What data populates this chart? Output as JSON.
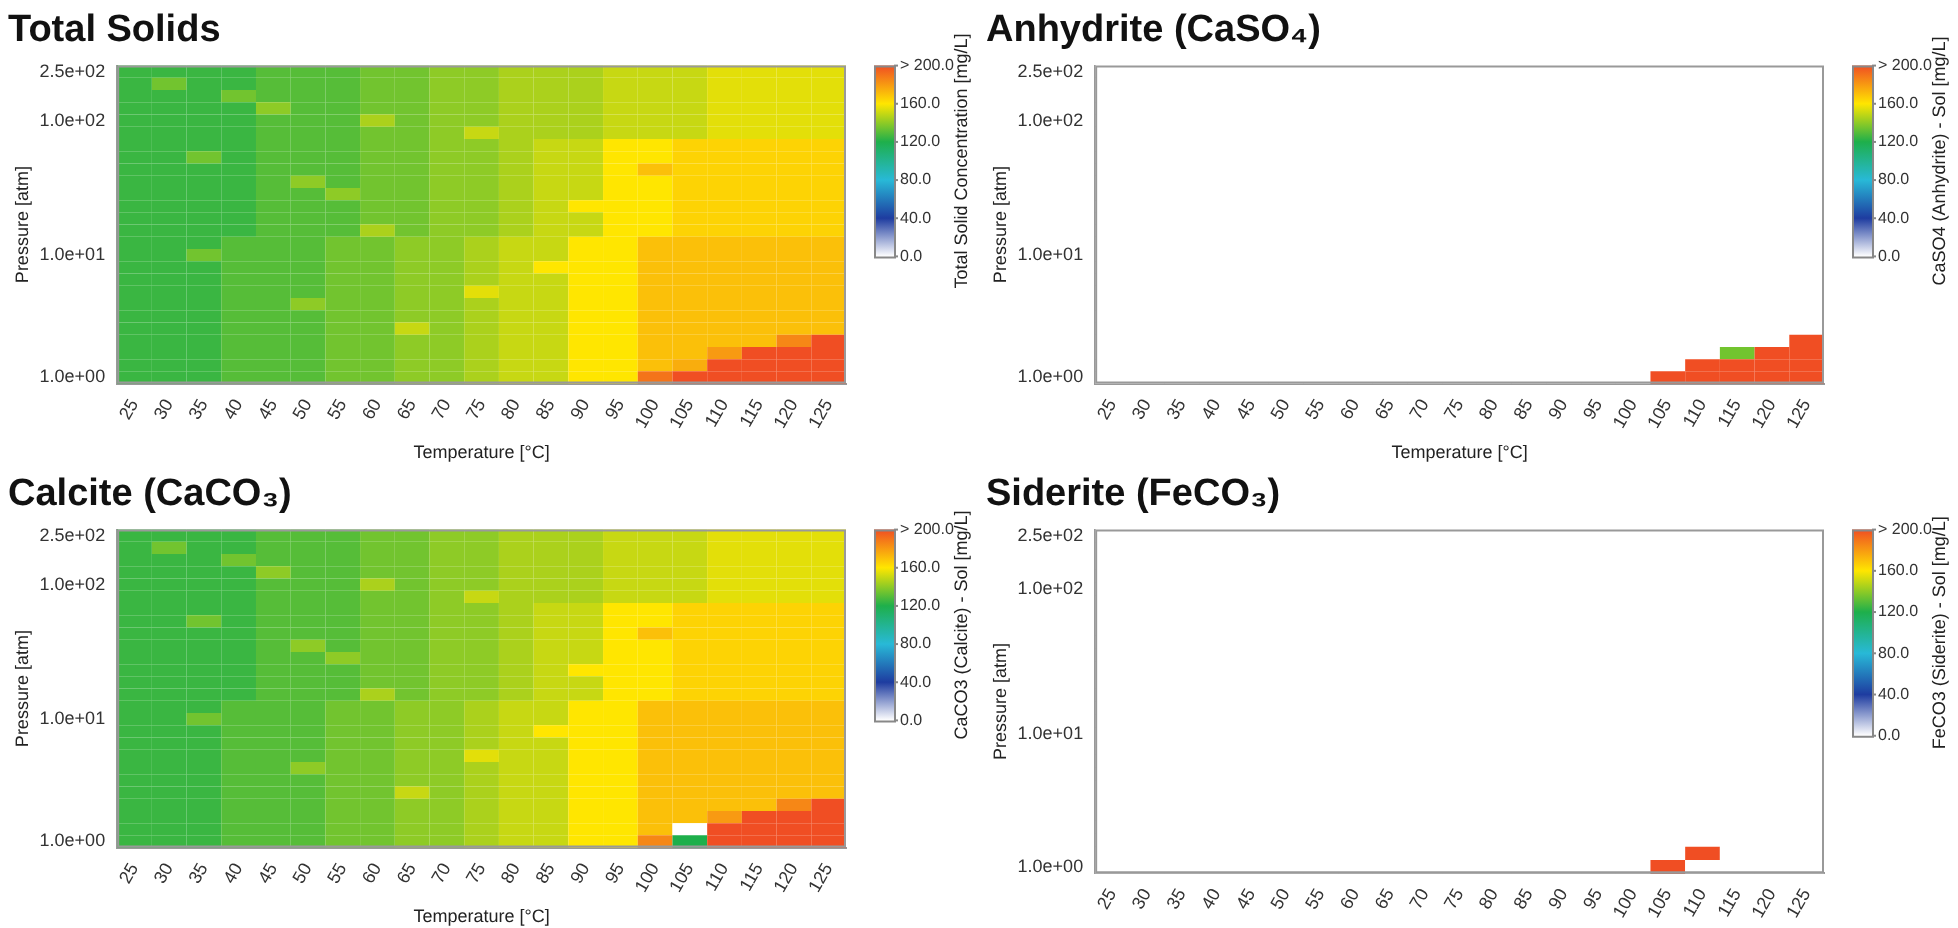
{
  "chart_data": [
    {
      "type": "heatmap",
      "title": "Total Solids",
      "xlabel": "Temperature [°C]",
      "ylabel": "Pressure [atm]",
      "clabel": "Total Solid Concentration [mg/L]",
      "categories": [
        "25",
        "30",
        "35",
        "40",
        "45",
        "50",
        "55",
        "60",
        "65",
        "70",
        "75",
        "80",
        "85",
        "90",
        "95",
        "100",
        "105",
        "110",
        "115",
        "120",
        "125"
      ],
      "y_categories": [
        "2.5e+02",
        null,
        null,
        null,
        "1.0e+02",
        null,
        null,
        null,
        null,
        null,
        null,
        null,
        null,
        null,
        null,
        "1.0e+01",
        null,
        null,
        null,
        null,
        null,
        null,
        null,
        null,
        null,
        "1.0e+00"
      ],
      "clim": [
        0,
        200
      ],
      "cticks": [
        {
          "value": 0,
          "label": "0.0"
        },
        {
          "value": 40,
          "label": "40.0"
        },
        {
          "value": 80,
          "label": "80.0"
        },
        {
          "value": 120,
          "label": "120.0"
        },
        {
          "value": 160,
          "label": "160.0"
        },
        {
          "value": 200,
          "label": "> 200.0"
        }
      ],
      "cells": [
        [
          125,
          125,
          125,
          125,
          130,
          130,
          130,
          135,
          135,
          140,
          140,
          145,
          145,
          145,
          150,
          150,
          150,
          155,
          155,
          155,
          155
        ],
        [
          125,
          135,
          125,
          125,
          130,
          130,
          130,
          135,
          135,
          140,
          140,
          145,
          145,
          145,
          150,
          150,
          150,
          155,
          155,
          155,
          155
        ],
        [
          125,
          125,
          125,
          135,
          130,
          130,
          130,
          135,
          135,
          140,
          140,
          145,
          145,
          145,
          150,
          150,
          150,
          155,
          155,
          155,
          155
        ],
        [
          125,
          125,
          125,
          125,
          140,
          130,
          130,
          135,
          135,
          140,
          140,
          145,
          145,
          145,
          150,
          150,
          150,
          155,
          155,
          155,
          155
        ],
        [
          125,
          125,
          125,
          125,
          130,
          130,
          130,
          145,
          135,
          140,
          140,
          145,
          145,
          145,
          150,
          150,
          150,
          155,
          155,
          155,
          155
        ],
        [
          125,
          125,
          125,
          125,
          130,
          130,
          130,
          135,
          135,
          140,
          150,
          145,
          145,
          145,
          150,
          150,
          150,
          155,
          155,
          155,
          155
        ],
        [
          125,
          125,
          125,
          125,
          130,
          130,
          130,
          135,
          135,
          140,
          140,
          145,
          150,
          150,
          160,
          160,
          165,
          165,
          165,
          165,
          165
        ],
        [
          125,
          125,
          135,
          125,
          130,
          130,
          130,
          135,
          135,
          140,
          140,
          145,
          150,
          150,
          160,
          160,
          165,
          165,
          165,
          165,
          165
        ],
        [
          125,
          125,
          125,
          125,
          130,
          130,
          130,
          135,
          135,
          140,
          140,
          145,
          150,
          150,
          160,
          170,
          165,
          165,
          165,
          165,
          165
        ],
        [
          125,
          125,
          125,
          125,
          130,
          140,
          130,
          135,
          135,
          140,
          140,
          145,
          150,
          150,
          160,
          160,
          165,
          165,
          165,
          165,
          165
        ],
        [
          125,
          125,
          125,
          125,
          130,
          130,
          140,
          135,
          135,
          140,
          140,
          145,
          150,
          150,
          160,
          160,
          165,
          165,
          165,
          165,
          165
        ],
        [
          125,
          125,
          125,
          125,
          130,
          130,
          130,
          135,
          135,
          140,
          140,
          145,
          150,
          160,
          160,
          160,
          165,
          165,
          165,
          165,
          165
        ],
        [
          125,
          125,
          125,
          125,
          130,
          130,
          130,
          135,
          135,
          140,
          140,
          145,
          150,
          150,
          160,
          160,
          165,
          165,
          165,
          165,
          165
        ],
        [
          125,
          125,
          125,
          125,
          130,
          130,
          130,
          145,
          135,
          140,
          140,
          145,
          150,
          150,
          160,
          160,
          165,
          165,
          165,
          165,
          165
        ],
        [
          125,
          125,
          125,
          130,
          130,
          130,
          135,
          135,
          140,
          140,
          145,
          150,
          150,
          160,
          160,
          170,
          170,
          170,
          170,
          170,
          170
        ],
        [
          125,
          125,
          135,
          130,
          130,
          130,
          135,
          135,
          140,
          140,
          145,
          150,
          150,
          160,
          160,
          170,
          170,
          170,
          170,
          170,
          170
        ],
        [
          125,
          125,
          125,
          130,
          130,
          130,
          135,
          135,
          140,
          140,
          145,
          150,
          160,
          160,
          160,
          170,
          170,
          170,
          170,
          170,
          170
        ],
        [
          125,
          125,
          125,
          130,
          130,
          130,
          135,
          135,
          140,
          140,
          145,
          150,
          150,
          160,
          160,
          170,
          170,
          170,
          170,
          170,
          170
        ],
        [
          125,
          125,
          125,
          130,
          130,
          130,
          135,
          135,
          140,
          140,
          155,
          150,
          150,
          160,
          160,
          170,
          170,
          170,
          170,
          170,
          170
        ],
        [
          125,
          125,
          125,
          130,
          130,
          140,
          135,
          135,
          140,
          140,
          145,
          150,
          150,
          160,
          160,
          170,
          170,
          170,
          170,
          170,
          170
        ],
        [
          125,
          125,
          125,
          130,
          130,
          130,
          135,
          135,
          140,
          140,
          145,
          150,
          150,
          160,
          160,
          170,
          170,
          170,
          170,
          170,
          170
        ],
        [
          125,
          125,
          125,
          130,
          130,
          130,
          135,
          135,
          150,
          140,
          145,
          150,
          150,
          160,
          160,
          170,
          170,
          170,
          170,
          170,
          170
        ],
        [
          125,
          125,
          125,
          130,
          130,
          130,
          135,
          135,
          140,
          140,
          145,
          150,
          150,
          160,
          160,
          170,
          170,
          170,
          170,
          185,
          200
        ],
        [
          125,
          125,
          125,
          130,
          130,
          130,
          135,
          135,
          140,
          140,
          145,
          150,
          150,
          160,
          160,
          170,
          170,
          180,
          200,
          200,
          200
        ],
        [
          125,
          125,
          125,
          130,
          130,
          130,
          135,
          135,
          140,
          140,
          145,
          150,
          150,
          160,
          160,
          170,
          175,
          200,
          200,
          200,
          200
        ],
        [
          125,
          125,
          125,
          130,
          130,
          130,
          135,
          135,
          140,
          140,
          145,
          150,
          150,
          160,
          160,
          190,
          200,
          200,
          200,
          200,
          200
        ]
      ]
    },
    {
      "type": "heatmap",
      "title": "Anhydrite (CaSO₄)",
      "xlabel": "Temperature [°C]",
      "ylabel": "Pressure [atm]",
      "clabel": "CaSO4 (Anhydrite) - Sol [mg/L]",
      "categories": [
        "25",
        "30",
        "35",
        "40",
        "45",
        "50",
        "55",
        "60",
        "65",
        "70",
        "75",
        "80",
        "85",
        "90",
        "95",
        "100",
        "105",
        "110",
        "115",
        "120",
        "125"
      ],
      "y_categories": [
        "2.5e+02",
        null,
        null,
        null,
        "1.0e+02",
        null,
        null,
        null,
        null,
        null,
        null,
        null,
        null,
        null,
        null,
        "1.0e+01",
        null,
        null,
        null,
        null,
        null,
        null,
        null,
        null,
        null,
        "1.0e+00"
      ],
      "clim": [
        0,
        200
      ],
      "cticks": [
        {
          "value": 0,
          "label": "0.0"
        },
        {
          "value": 40,
          "label": "40.0"
        },
        {
          "value": 80,
          "label": "80.0"
        },
        {
          "value": 120,
          "label": "120.0"
        },
        {
          "value": 160,
          "label": "160.0"
        },
        {
          "value": 200,
          "label": "> 200.0"
        }
      ],
      "cells": [
        [
          0,
          0,
          0,
          0,
          0,
          0,
          0,
          0,
          0,
          0,
          0,
          0,
          0,
          0,
          0,
          0,
          0,
          0,
          0,
          0,
          0
        ],
        [
          0,
          0,
          0,
          0,
          0,
          0,
          0,
          0,
          0,
          0,
          0,
          0,
          0,
          0,
          0,
          0,
          0,
          0,
          0,
          0,
          0
        ],
        [
          0,
          0,
          0,
          0,
          0,
          0,
          0,
          0,
          0,
          0,
          0,
          0,
          0,
          0,
          0,
          0,
          0,
          0,
          0,
          0,
          0
        ],
        [
          0,
          0,
          0,
          0,
          0,
          0,
          0,
          0,
          0,
          0,
          0,
          0,
          0,
          0,
          0,
          0,
          0,
          0,
          0,
          0,
          0
        ],
        [
          0,
          0,
          0,
          0,
          0,
          0,
          0,
          0,
          0,
          0,
          0,
          0,
          0,
          0,
          0,
          0,
          0,
          0,
          0,
          0,
          0
        ],
        [
          0,
          0,
          0,
          0,
          0,
          0,
          0,
          0,
          0,
          0,
          0,
          0,
          0,
          0,
          0,
          0,
          0,
          0,
          0,
          0,
          0
        ],
        [
          0,
          0,
          0,
          0,
          0,
          0,
          0,
          0,
          0,
          0,
          0,
          0,
          0,
          0,
          0,
          0,
          0,
          0,
          0,
          0,
          0
        ],
        [
          0,
          0,
          0,
          0,
          0,
          0,
          0,
          0,
          0,
          0,
          0,
          0,
          0,
          0,
          0,
          0,
          0,
          0,
          0,
          0,
          0
        ],
        [
          0,
          0,
          0,
          0,
          0,
          0,
          0,
          0,
          0,
          0,
          0,
          0,
          0,
          0,
          0,
          0,
          0,
          0,
          0,
          0,
          0
        ],
        [
          0,
          0,
          0,
          0,
          0,
          0,
          0,
          0,
          0,
          0,
          0,
          0,
          0,
          0,
          0,
          0,
          0,
          0,
          0,
          0,
          0
        ],
        [
          0,
          0,
          0,
          0,
          0,
          0,
          0,
          0,
          0,
          0,
          0,
          0,
          0,
          0,
          0,
          0,
          0,
          0,
          0,
          0,
          0
        ],
        [
          0,
          0,
          0,
          0,
          0,
          0,
          0,
          0,
          0,
          0,
          0,
          0,
          0,
          0,
          0,
          0,
          0,
          0,
          0,
          0,
          0
        ],
        [
          0,
          0,
          0,
          0,
          0,
          0,
          0,
          0,
          0,
          0,
          0,
          0,
          0,
          0,
          0,
          0,
          0,
          0,
          0,
          0,
          0
        ],
        [
          0,
          0,
          0,
          0,
          0,
          0,
          0,
          0,
          0,
          0,
          0,
          0,
          0,
          0,
          0,
          0,
          0,
          0,
          0,
          0,
          0
        ],
        [
          0,
          0,
          0,
          0,
          0,
          0,
          0,
          0,
          0,
          0,
          0,
          0,
          0,
          0,
          0,
          0,
          0,
          0,
          0,
          0,
          0
        ],
        [
          0,
          0,
          0,
          0,
          0,
          0,
          0,
          0,
          0,
          0,
          0,
          0,
          0,
          0,
          0,
          0,
          0,
          0,
          0,
          0,
          0
        ],
        [
          0,
          0,
          0,
          0,
          0,
          0,
          0,
          0,
          0,
          0,
          0,
          0,
          0,
          0,
          0,
          0,
          0,
          0,
          0,
          0,
          0
        ],
        [
          0,
          0,
          0,
          0,
          0,
          0,
          0,
          0,
          0,
          0,
          0,
          0,
          0,
          0,
          0,
          0,
          0,
          0,
          0,
          0,
          0
        ],
        [
          0,
          0,
          0,
          0,
          0,
          0,
          0,
          0,
          0,
          0,
          0,
          0,
          0,
          0,
          0,
          0,
          0,
          0,
          0,
          0,
          0
        ],
        [
          0,
          0,
          0,
          0,
          0,
          0,
          0,
          0,
          0,
          0,
          0,
          0,
          0,
          0,
          0,
          0,
          0,
          0,
          0,
          0,
          0
        ],
        [
          0,
          0,
          0,
          0,
          0,
          0,
          0,
          0,
          0,
          0,
          0,
          0,
          0,
          0,
          0,
          0,
          0,
          0,
          0,
          0,
          0
        ],
        [
          0,
          0,
          0,
          0,
          0,
          0,
          0,
          0,
          0,
          0,
          0,
          0,
          0,
          0,
          0,
          0,
          0,
          0,
          0,
          0,
          0
        ],
        [
          0,
          0,
          0,
          0,
          0,
          0,
          0,
          0,
          0,
          0,
          0,
          0,
          0,
          0,
          0,
          0,
          0,
          0,
          0,
          0,
          200
        ],
        [
          0,
          0,
          0,
          0,
          0,
          0,
          0,
          0,
          0,
          0,
          0,
          0,
          0,
          0,
          0,
          0,
          0,
          0,
          135,
          200,
          200
        ],
        [
          0,
          0,
          0,
          0,
          0,
          0,
          0,
          0,
          0,
          0,
          0,
          0,
          0,
          0,
          0,
          0,
          0,
          200,
          200,
          200,
          200
        ],
        [
          0,
          0,
          0,
          0,
          0,
          0,
          0,
          0,
          0,
          0,
          0,
          0,
          0,
          0,
          0,
          0,
          200,
          200,
          200,
          200,
          200
        ]
      ]
    },
    {
      "type": "heatmap",
      "title": "Calcite (CaCO₃)",
      "xlabel": "Temperature [°C]",
      "ylabel": "Pressure [atm]",
      "clabel": "CaCO3 (Calcite) - Sol [mg/L]",
      "categories": [
        "25",
        "30",
        "35",
        "40",
        "45",
        "50",
        "55",
        "60",
        "65",
        "70",
        "75",
        "80",
        "85",
        "90",
        "95",
        "100",
        "105",
        "110",
        "115",
        "120",
        "125"
      ],
      "y_categories": [
        "2.5e+02",
        null,
        null,
        null,
        "1.0e+02",
        null,
        null,
        null,
        null,
        null,
        null,
        null,
        null,
        null,
        null,
        "1.0e+01",
        null,
        null,
        null,
        null,
        null,
        null,
        null,
        null,
        null,
        "1.0e+00"
      ],
      "clim": [
        0,
        200
      ],
      "cticks": [
        {
          "value": 0,
          "label": "0.0"
        },
        {
          "value": 40,
          "label": "40.0"
        },
        {
          "value": 80,
          "label": "80.0"
        },
        {
          "value": 120,
          "label": "120.0"
        },
        {
          "value": 160,
          "label": "160.0"
        },
        {
          "value": 200,
          "label": "> 200.0"
        }
      ],
      "cells": [
        [
          125,
          125,
          125,
          125,
          130,
          130,
          130,
          135,
          135,
          140,
          140,
          145,
          145,
          145,
          150,
          150,
          150,
          155,
          155,
          155,
          155
        ],
        [
          125,
          135,
          125,
          125,
          130,
          130,
          130,
          135,
          135,
          140,
          140,
          145,
          145,
          145,
          150,
          150,
          150,
          155,
          155,
          155,
          155
        ],
        [
          125,
          125,
          125,
          135,
          130,
          130,
          130,
          135,
          135,
          140,
          140,
          145,
          145,
          145,
          150,
          150,
          150,
          155,
          155,
          155,
          155
        ],
        [
          125,
          125,
          125,
          125,
          140,
          130,
          130,
          135,
          135,
          140,
          140,
          145,
          145,
          145,
          150,
          150,
          150,
          155,
          155,
          155,
          155
        ],
        [
          125,
          125,
          125,
          125,
          130,
          130,
          130,
          145,
          135,
          140,
          140,
          145,
          145,
          145,
          150,
          150,
          150,
          155,
          155,
          155,
          155
        ],
        [
          125,
          125,
          125,
          125,
          130,
          130,
          130,
          135,
          135,
          140,
          150,
          145,
          145,
          145,
          150,
          150,
          150,
          155,
          155,
          155,
          155
        ],
        [
          125,
          125,
          125,
          125,
          130,
          130,
          130,
          135,
          135,
          140,
          140,
          145,
          150,
          150,
          160,
          160,
          165,
          165,
          165,
          165,
          165
        ],
        [
          125,
          125,
          135,
          125,
          130,
          130,
          130,
          135,
          135,
          140,
          140,
          145,
          150,
          150,
          160,
          160,
          165,
          165,
          165,
          165,
          165
        ],
        [
          125,
          125,
          125,
          125,
          130,
          130,
          130,
          135,
          135,
          140,
          140,
          145,
          150,
          150,
          160,
          170,
          165,
          165,
          165,
          165,
          165
        ],
        [
          125,
          125,
          125,
          125,
          130,
          140,
          130,
          135,
          135,
          140,
          140,
          145,
          150,
          150,
          160,
          160,
          165,
          165,
          165,
          165,
          165
        ],
        [
          125,
          125,
          125,
          125,
          130,
          130,
          140,
          135,
          135,
          140,
          140,
          145,
          150,
          150,
          160,
          160,
          165,
          165,
          165,
          165,
          165
        ],
        [
          125,
          125,
          125,
          125,
          130,
          130,
          130,
          135,
          135,
          140,
          140,
          145,
          150,
          160,
          160,
          160,
          165,
          165,
          165,
          165,
          165
        ],
        [
          125,
          125,
          125,
          125,
          130,
          130,
          130,
          135,
          135,
          140,
          140,
          145,
          150,
          150,
          160,
          160,
          165,
          165,
          165,
          165,
          165
        ],
        [
          125,
          125,
          125,
          125,
          130,
          130,
          130,
          145,
          135,
          140,
          140,
          145,
          150,
          150,
          160,
          160,
          165,
          165,
          165,
          165,
          165
        ],
        [
          125,
          125,
          125,
          130,
          130,
          130,
          135,
          135,
          140,
          140,
          145,
          150,
          150,
          160,
          160,
          170,
          170,
          170,
          170,
          170,
          170
        ],
        [
          125,
          125,
          135,
          130,
          130,
          130,
          135,
          135,
          140,
          140,
          145,
          150,
          150,
          160,
          160,
          170,
          170,
          170,
          170,
          170,
          170
        ],
        [
          125,
          125,
          125,
          130,
          130,
          130,
          135,
          135,
          140,
          140,
          145,
          150,
          160,
          160,
          160,
          170,
          170,
          170,
          170,
          170,
          170
        ],
        [
          125,
          125,
          125,
          130,
          130,
          130,
          135,
          135,
          140,
          140,
          145,
          150,
          150,
          160,
          160,
          170,
          170,
          170,
          170,
          170,
          170
        ],
        [
          125,
          125,
          125,
          130,
          130,
          130,
          135,
          135,
          140,
          140,
          155,
          150,
          150,
          160,
          160,
          170,
          170,
          170,
          170,
          170,
          170
        ],
        [
          125,
          125,
          125,
          130,
          130,
          140,
          135,
          135,
          140,
          140,
          145,
          150,
          150,
          160,
          160,
          170,
          170,
          170,
          170,
          170,
          170
        ],
        [
          125,
          125,
          125,
          130,
          130,
          130,
          135,
          135,
          140,
          140,
          145,
          150,
          150,
          160,
          160,
          170,
          170,
          170,
          170,
          170,
          170
        ],
        [
          125,
          125,
          125,
          130,
          130,
          130,
          135,
          135,
          150,
          140,
          145,
          150,
          150,
          160,
          160,
          170,
          170,
          170,
          170,
          170,
          170
        ],
        [
          125,
          125,
          125,
          130,
          130,
          130,
          135,
          135,
          140,
          140,
          145,
          150,
          150,
          160,
          160,
          170,
          170,
          170,
          170,
          185,
          200
        ],
        [
          125,
          125,
          125,
          130,
          130,
          130,
          135,
          135,
          140,
          140,
          145,
          150,
          150,
          160,
          160,
          170,
          170,
          180,
          200,
          200,
          200
        ],
        [
          125,
          125,
          125,
          130,
          130,
          130,
          135,
          135,
          140,
          140,
          145,
          150,
          150,
          160,
          160,
          170,
          0,
          200,
          200,
          200,
          200
        ],
        [
          125,
          125,
          125,
          130,
          130,
          130,
          135,
          135,
          140,
          140,
          145,
          150,
          150,
          160,
          160,
          185,
          120,
          200,
          200,
          200,
          200
        ]
      ]
    },
    {
      "type": "heatmap",
      "title": "Siderite (FeCO₃)",
      "ylabel": "Pressure [atm]",
      "clabel": "FeCO3 (Siderite) - Sol [mg/L]",
      "categories": [
        "25",
        "30",
        "35",
        "40",
        "45",
        "50",
        "55",
        "60",
        "65",
        "70",
        "75",
        "80",
        "85",
        "90",
        "95",
        "100",
        "105",
        "110",
        "115",
        "120",
        "125"
      ],
      "y_categories": [
        "2.5e+02",
        null,
        null,
        null,
        "1.0e+02",
        null,
        null,
        null,
        null,
        null,
        null,
        null,
        null,
        null,
        null,
        "1.0e+01",
        null,
        null,
        null,
        null,
        null,
        null,
        null,
        null,
        null,
        "1.0e+00"
      ],
      "clim": [
        0,
        200
      ],
      "cticks": [
        {
          "value": 0,
          "label": "0.0"
        },
        {
          "value": 40,
          "label": "40.0"
        },
        {
          "value": 80,
          "label": "80.0"
        },
        {
          "value": 120,
          "label": "120.0"
        },
        {
          "value": 160,
          "label": "160.0"
        },
        {
          "value": 200,
          "label": "> 200.0"
        }
      ],
      "cells": [
        [
          0,
          0,
          0,
          0,
          0,
          0,
          0,
          0,
          0,
          0,
          0,
          0,
          0,
          0,
          0,
          0,
          0,
          0,
          0,
          0,
          0
        ],
        [
          0,
          0,
          0,
          0,
          0,
          0,
          0,
          0,
          0,
          0,
          0,
          0,
          0,
          0,
          0,
          0,
          0,
          0,
          0,
          0,
          0
        ],
        [
          0,
          0,
          0,
          0,
          0,
          0,
          0,
          0,
          0,
          0,
          0,
          0,
          0,
          0,
          0,
          0,
          0,
          0,
          0,
          0,
          0
        ],
        [
          0,
          0,
          0,
          0,
          0,
          0,
          0,
          0,
          0,
          0,
          0,
          0,
          0,
          0,
          0,
          0,
          0,
          0,
          0,
          0,
          0
        ],
        [
          0,
          0,
          0,
          0,
          0,
          0,
          0,
          0,
          0,
          0,
          0,
          0,
          0,
          0,
          0,
          0,
          0,
          0,
          0,
          0,
          0
        ],
        [
          0,
          0,
          0,
          0,
          0,
          0,
          0,
          0,
          0,
          0,
          0,
          0,
          0,
          0,
          0,
          0,
          0,
          0,
          0,
          0,
          0
        ],
        [
          0,
          0,
          0,
          0,
          0,
          0,
          0,
          0,
          0,
          0,
          0,
          0,
          0,
          0,
          0,
          0,
          0,
          0,
          0,
          0,
          0
        ],
        [
          0,
          0,
          0,
          0,
          0,
          0,
          0,
          0,
          0,
          0,
          0,
          0,
          0,
          0,
          0,
          0,
          0,
          0,
          0,
          0,
          0
        ],
        [
          0,
          0,
          0,
          0,
          0,
          0,
          0,
          0,
          0,
          0,
          0,
          0,
          0,
          0,
          0,
          0,
          0,
          0,
          0,
          0,
          0
        ],
        [
          0,
          0,
          0,
          0,
          0,
          0,
          0,
          0,
          0,
          0,
          0,
          0,
          0,
          0,
          0,
          0,
          0,
          0,
          0,
          0,
          0
        ],
        [
          0,
          0,
          0,
          0,
          0,
          0,
          0,
          0,
          0,
          0,
          0,
          0,
          0,
          0,
          0,
          0,
          0,
          0,
          0,
          0,
          0
        ],
        [
          0,
          0,
          0,
          0,
          0,
          0,
          0,
          0,
          0,
          0,
          0,
          0,
          0,
          0,
          0,
          0,
          0,
          0,
          0,
          0,
          0
        ],
        [
          0,
          0,
          0,
          0,
          0,
          0,
          0,
          0,
          0,
          0,
          0,
          0,
          0,
          0,
          0,
          0,
          0,
          0,
          0,
          0,
          0
        ],
        [
          0,
          0,
          0,
          0,
          0,
          0,
          0,
          0,
          0,
          0,
          0,
          0,
          0,
          0,
          0,
          0,
          0,
          0,
          0,
          0,
          0
        ],
        [
          0,
          0,
          0,
          0,
          0,
          0,
          0,
          0,
          0,
          0,
          0,
          0,
          0,
          0,
          0,
          0,
          0,
          0,
          0,
          0,
          0
        ],
        [
          0,
          0,
          0,
          0,
          0,
          0,
          0,
          0,
          0,
          0,
          0,
          0,
          0,
          0,
          0,
          0,
          0,
          0,
          0,
          0,
          0
        ],
        [
          0,
          0,
          0,
          0,
          0,
          0,
          0,
          0,
          0,
          0,
          0,
          0,
          0,
          0,
          0,
          0,
          0,
          0,
          0,
          0,
          0
        ],
        [
          0,
          0,
          0,
          0,
          0,
          0,
          0,
          0,
          0,
          0,
          0,
          0,
          0,
          0,
          0,
          0,
          0,
          0,
          0,
          0,
          0
        ],
        [
          0,
          0,
          0,
          0,
          0,
          0,
          0,
          0,
          0,
          0,
          0,
          0,
          0,
          0,
          0,
          0,
          0,
          0,
          0,
          0,
          0
        ],
        [
          0,
          0,
          0,
          0,
          0,
          0,
          0,
          0,
          0,
          0,
          0,
          0,
          0,
          0,
          0,
          0,
          0,
          0,
          0,
          0,
          0
        ],
        [
          0,
          0,
          0,
          0,
          0,
          0,
          0,
          0,
          0,
          0,
          0,
          0,
          0,
          0,
          0,
          0,
          0,
          0,
          0,
          0,
          0
        ],
        [
          0,
          0,
          0,
          0,
          0,
          0,
          0,
          0,
          0,
          0,
          0,
          0,
          0,
          0,
          0,
          0,
          0,
          0,
          0,
          0,
          0
        ],
        [
          0,
          0,
          0,
          0,
          0,
          0,
          0,
          0,
          0,
          0,
          0,
          0,
          0,
          0,
          0,
          0,
          0,
          0,
          0,
          0,
          0
        ],
        [
          0,
          0,
          0,
          0,
          0,
          0,
          0,
          0,
          0,
          0,
          0,
          0,
          0,
          0,
          0,
          0,
          0,
          0,
          0,
          0,
          0
        ],
        [
          0,
          0,
          0,
          0,
          0,
          0,
          0,
          0,
          0,
          0,
          0,
          0,
          0,
          0,
          0,
          0,
          0,
          200,
          0,
          0,
          0
        ],
        [
          0,
          0,
          0,
          0,
          0,
          0,
          0,
          0,
          0,
          0,
          0,
          0,
          0,
          0,
          0,
          0,
          200,
          0,
          0,
          0,
          0
        ]
      ]
    }
  ]
}
